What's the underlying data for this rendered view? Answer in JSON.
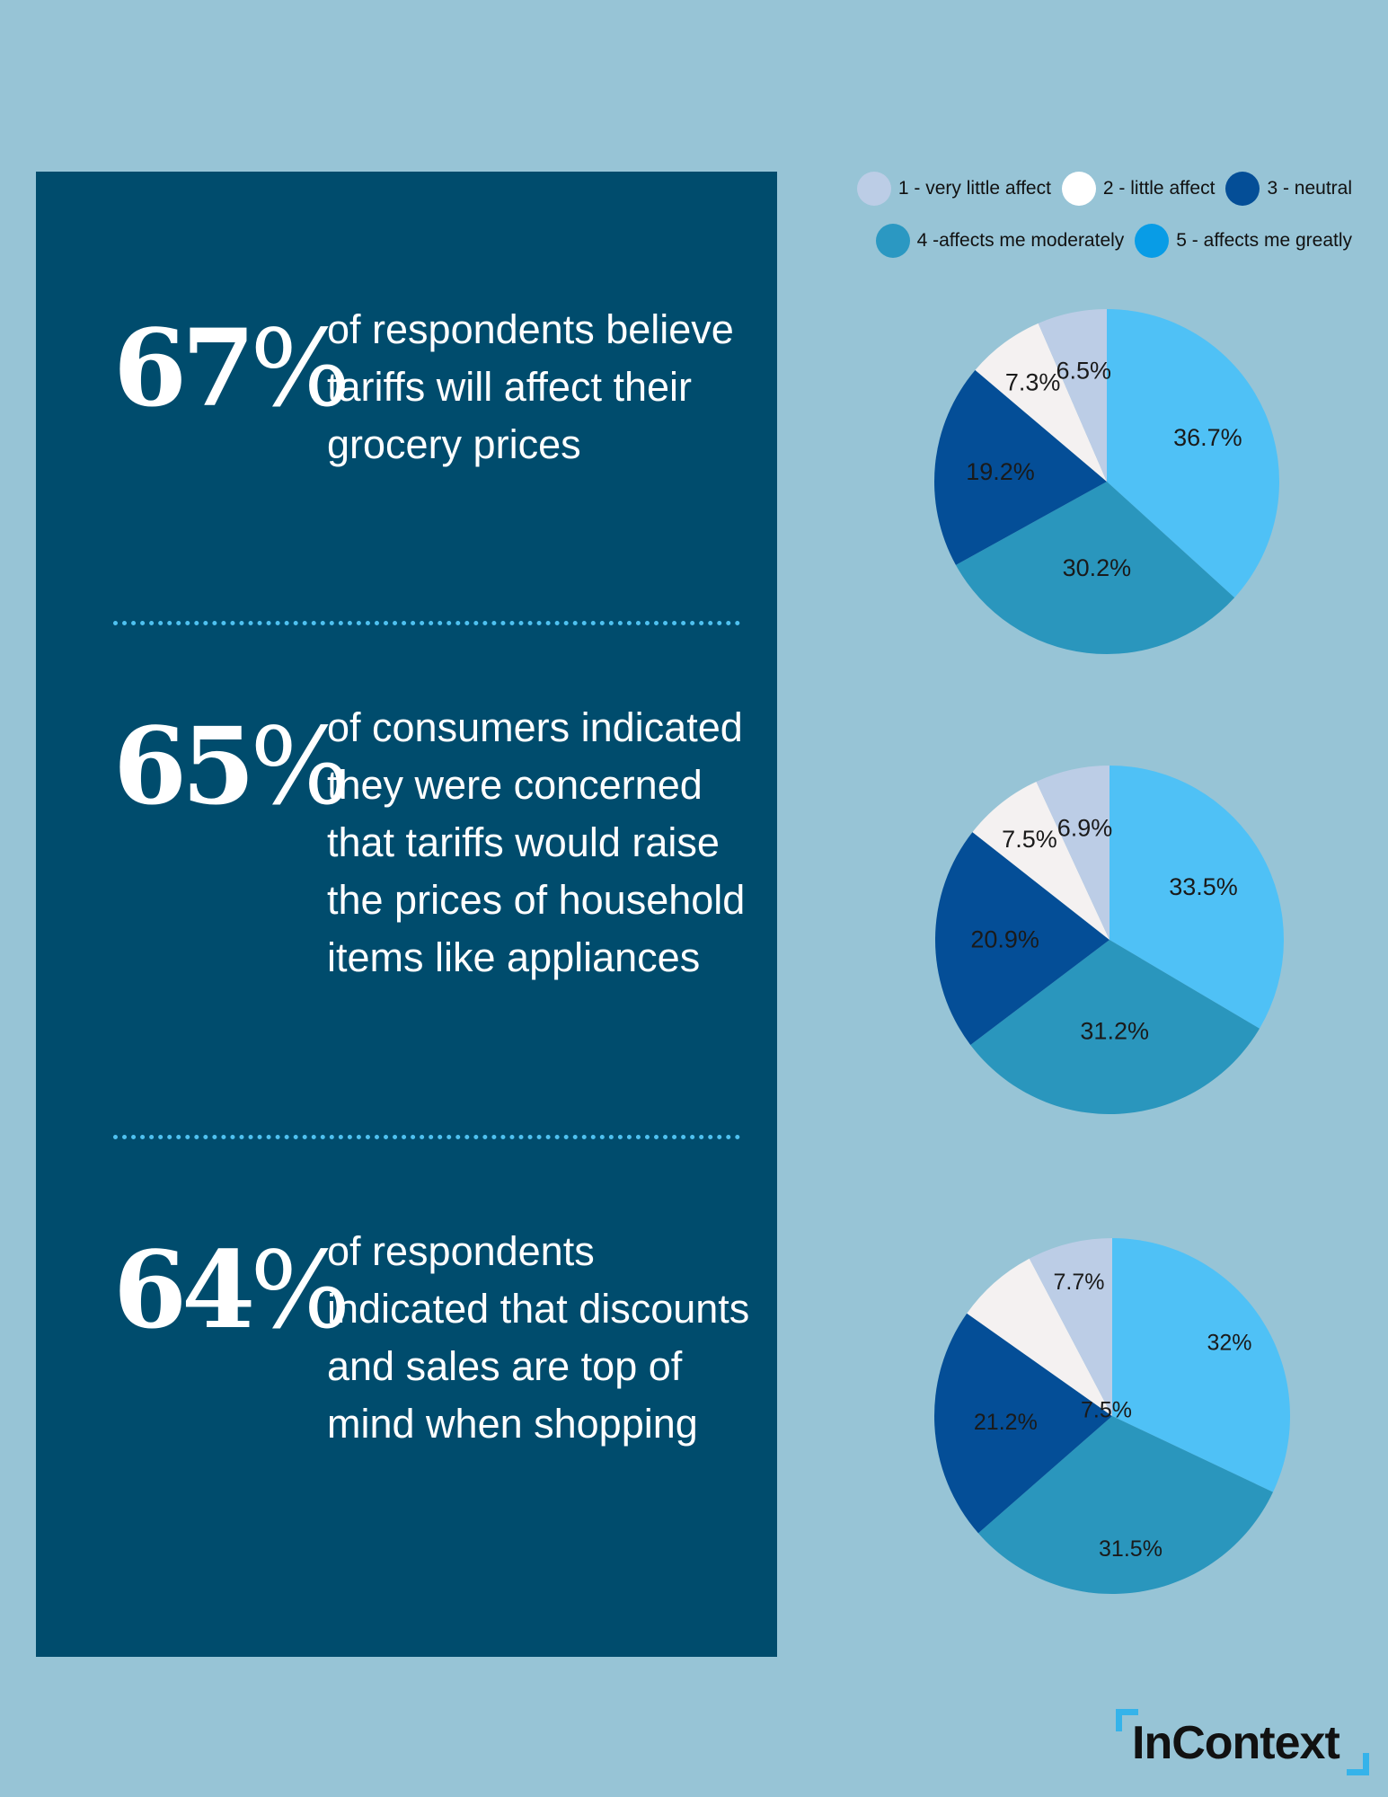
{
  "stats": [
    {
      "value": "67",
      "unit": "%",
      "text": "of respondents believe tariffs will affect their grocery prices"
    },
    {
      "value": "65",
      "unit": "%",
      "text": "of consumers indicated they were concerned that tariffs would raise the prices of household items like appliances"
    },
    {
      "value": "64",
      "unit": "%",
      "text": "of respondents indicated that discounts and sales are top of mind when shopping"
    }
  ],
  "legend": [
    {
      "label": "1 - very little affect",
      "color": "#bccde6"
    },
    {
      "label": "2 - little affect",
      "color": "#ffffff"
    },
    {
      "label": "3 - neutral",
      "color": "#044e97"
    },
    {
      "label": "4 -affects me moderately",
      "color": "#2b98c2"
    },
    {
      "label": "5 - affects me greatly",
      "color": "#089ce6"
    }
  ],
  "slice_colors": [
    "#4fc1f6",
    "#2a96bd",
    "#044e97",
    "#f4f1f1",
    "#bccde6"
  ],
  "chart_data": [
    {
      "type": "pie",
      "categories": [
        "5 - affects me greatly",
        "4 -affects me moderately",
        "3 - neutral",
        "2 - little affect",
        "1 - very little affect"
      ],
      "values": [
        36.7,
        30.2,
        19.2,
        7.3,
        6.5
      ],
      "labels": [
        "36.7%",
        "30.2%",
        "19.2%",
        "7.3%",
        "6.5%"
      ]
    },
    {
      "type": "pie",
      "categories": [
        "5 - affects me greatly",
        "4 -affects me moderately",
        "3 - neutral",
        "2 - little affect",
        "1 - very little affect"
      ],
      "values": [
        33.5,
        31.2,
        20.9,
        7.5,
        6.9
      ],
      "labels": [
        "33.5%",
        "31.2%",
        "20.9%",
        "7.5%",
        "6.9%"
      ]
    },
    {
      "type": "pie",
      "categories": [
        "5 - affects me greatly",
        "4 -affects me moderately",
        "3 - neutral",
        "2 - little affect",
        "1 - very little affect"
      ],
      "values": [
        32,
        31.5,
        21.2,
        7.5,
        7.7
      ],
      "labels": [
        "32%",
        "31.5%",
        "21.2%",
        "7.5%",
        "7.7%"
      ]
    }
  ],
  "logo": {
    "text": "InContext"
  }
}
